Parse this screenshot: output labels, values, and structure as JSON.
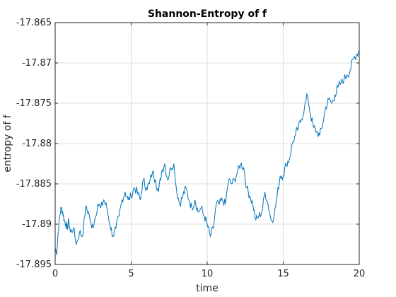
{
  "chart_data": {
    "type": "line",
    "title": "Shannon-Entropy of f",
    "xlabel": "time",
    "ylabel": "entropy of f",
    "xlim": [
      0,
      20
    ],
    "ylim": [
      -17.895,
      -17.865
    ],
    "xticks": [
      0,
      5,
      10,
      15,
      20
    ],
    "xtick_labels": [
      "0",
      "5",
      "10",
      "15",
      "20"
    ],
    "yticks": [
      -17.865,
      -17.87,
      -17.875,
      -17.88,
      -17.885,
      -17.89,
      -17.895
    ],
    "ytick_labels": [
      "-17.865",
      "-17.87",
      "-17.875",
      "-17.88",
      "-17.885",
      "-17.89",
      "-17.895"
    ],
    "grid": true,
    "line_color": "#0072BD",
    "grid_color": "#dcdcdc",
    "series": [
      {
        "x": [
          0,
          0.1,
          0.2,
          0.3,
          0.4,
          0.5,
          0.6,
          0.7,
          0.8,
          0.9,
          1.0,
          1.2,
          1.4,
          1.6,
          1.8,
          2.0,
          2.2,
          2.4,
          2.6,
          2.8,
          3.0,
          3.2,
          3.4,
          3.6,
          3.8,
          4.0,
          4.2,
          4.4,
          4.6,
          4.8,
          5.0,
          5.2,
          5.4,
          5.6,
          5.8,
          6.0,
          6.2,
          6.4,
          6.6,
          6.8,
          7.0,
          7.2,
          7.4,
          7.6,
          7.8,
          8.0,
          8.2,
          8.4,
          8.6,
          8.8,
          9.0,
          9.2,
          9.4,
          9.6,
          9.8,
          10.0,
          10.2,
          10.4,
          10.6,
          10.8,
          11.0,
          11.2,
          11.4,
          11.6,
          11.8,
          12.0,
          12.2,
          12.4,
          12.6,
          12.8,
          13.0,
          13.2,
          13.4,
          13.6,
          13.8,
          14.0,
          14.2,
          14.4,
          14.6,
          14.8,
          15.0,
          15.2,
          15.4,
          15.6,
          15.8,
          16.0,
          16.2,
          16.4,
          16.6,
          16.8,
          17.0,
          17.2,
          17.4,
          17.6,
          17.8,
          18.0,
          18.2,
          18.4,
          18.6,
          18.8,
          19.0,
          19.2,
          19.4,
          19.6,
          19.8,
          20.0
        ],
        "y": [
          -17.893,
          -17.8935,
          -17.891,
          -17.889,
          -17.888,
          -17.8885,
          -17.8895,
          -17.89,
          -17.8905,
          -17.8895,
          -17.891,
          -17.8905,
          -17.8925,
          -17.891,
          -17.8915,
          -17.888,
          -17.8885,
          -17.8905,
          -17.8895,
          -17.8875,
          -17.888,
          -17.887,
          -17.888,
          -17.89,
          -17.8915,
          -17.8905,
          -17.889,
          -17.887,
          -17.886,
          -17.887,
          -17.8865,
          -17.8855,
          -17.886,
          -17.887,
          -17.8845,
          -17.8855,
          -17.885,
          -17.8835,
          -17.8845,
          -17.886,
          -17.8835,
          -17.8825,
          -17.8845,
          -17.883,
          -17.8825,
          -17.886,
          -17.8875,
          -17.8865,
          -17.8855,
          -17.887,
          -17.888,
          -17.887,
          -17.8885,
          -17.888,
          -17.889,
          -17.89,
          -17.8915,
          -17.8905,
          -17.8875,
          -17.8875,
          -17.887,
          -17.8875,
          -17.8845,
          -17.885,
          -17.8845,
          -17.8835,
          -17.8825,
          -17.883,
          -17.8855,
          -17.8865,
          -17.8875,
          -17.8895,
          -17.889,
          -17.8885,
          -17.886,
          -17.8875,
          -17.8895,
          -17.889,
          -17.8865,
          -17.884,
          -17.884,
          -17.8825,
          -17.882,
          -17.88,
          -17.879,
          -17.878,
          -17.877,
          -17.8755,
          -17.874,
          -17.8765,
          -17.878,
          -17.8785,
          -17.879,
          -17.8775,
          -17.8755,
          -17.8745,
          -17.875,
          -17.874,
          -17.873,
          -17.8725,
          -17.872,
          -17.8715,
          -17.871,
          -17.8695,
          -17.869,
          -17.8685
        ]
      }
    ]
  }
}
